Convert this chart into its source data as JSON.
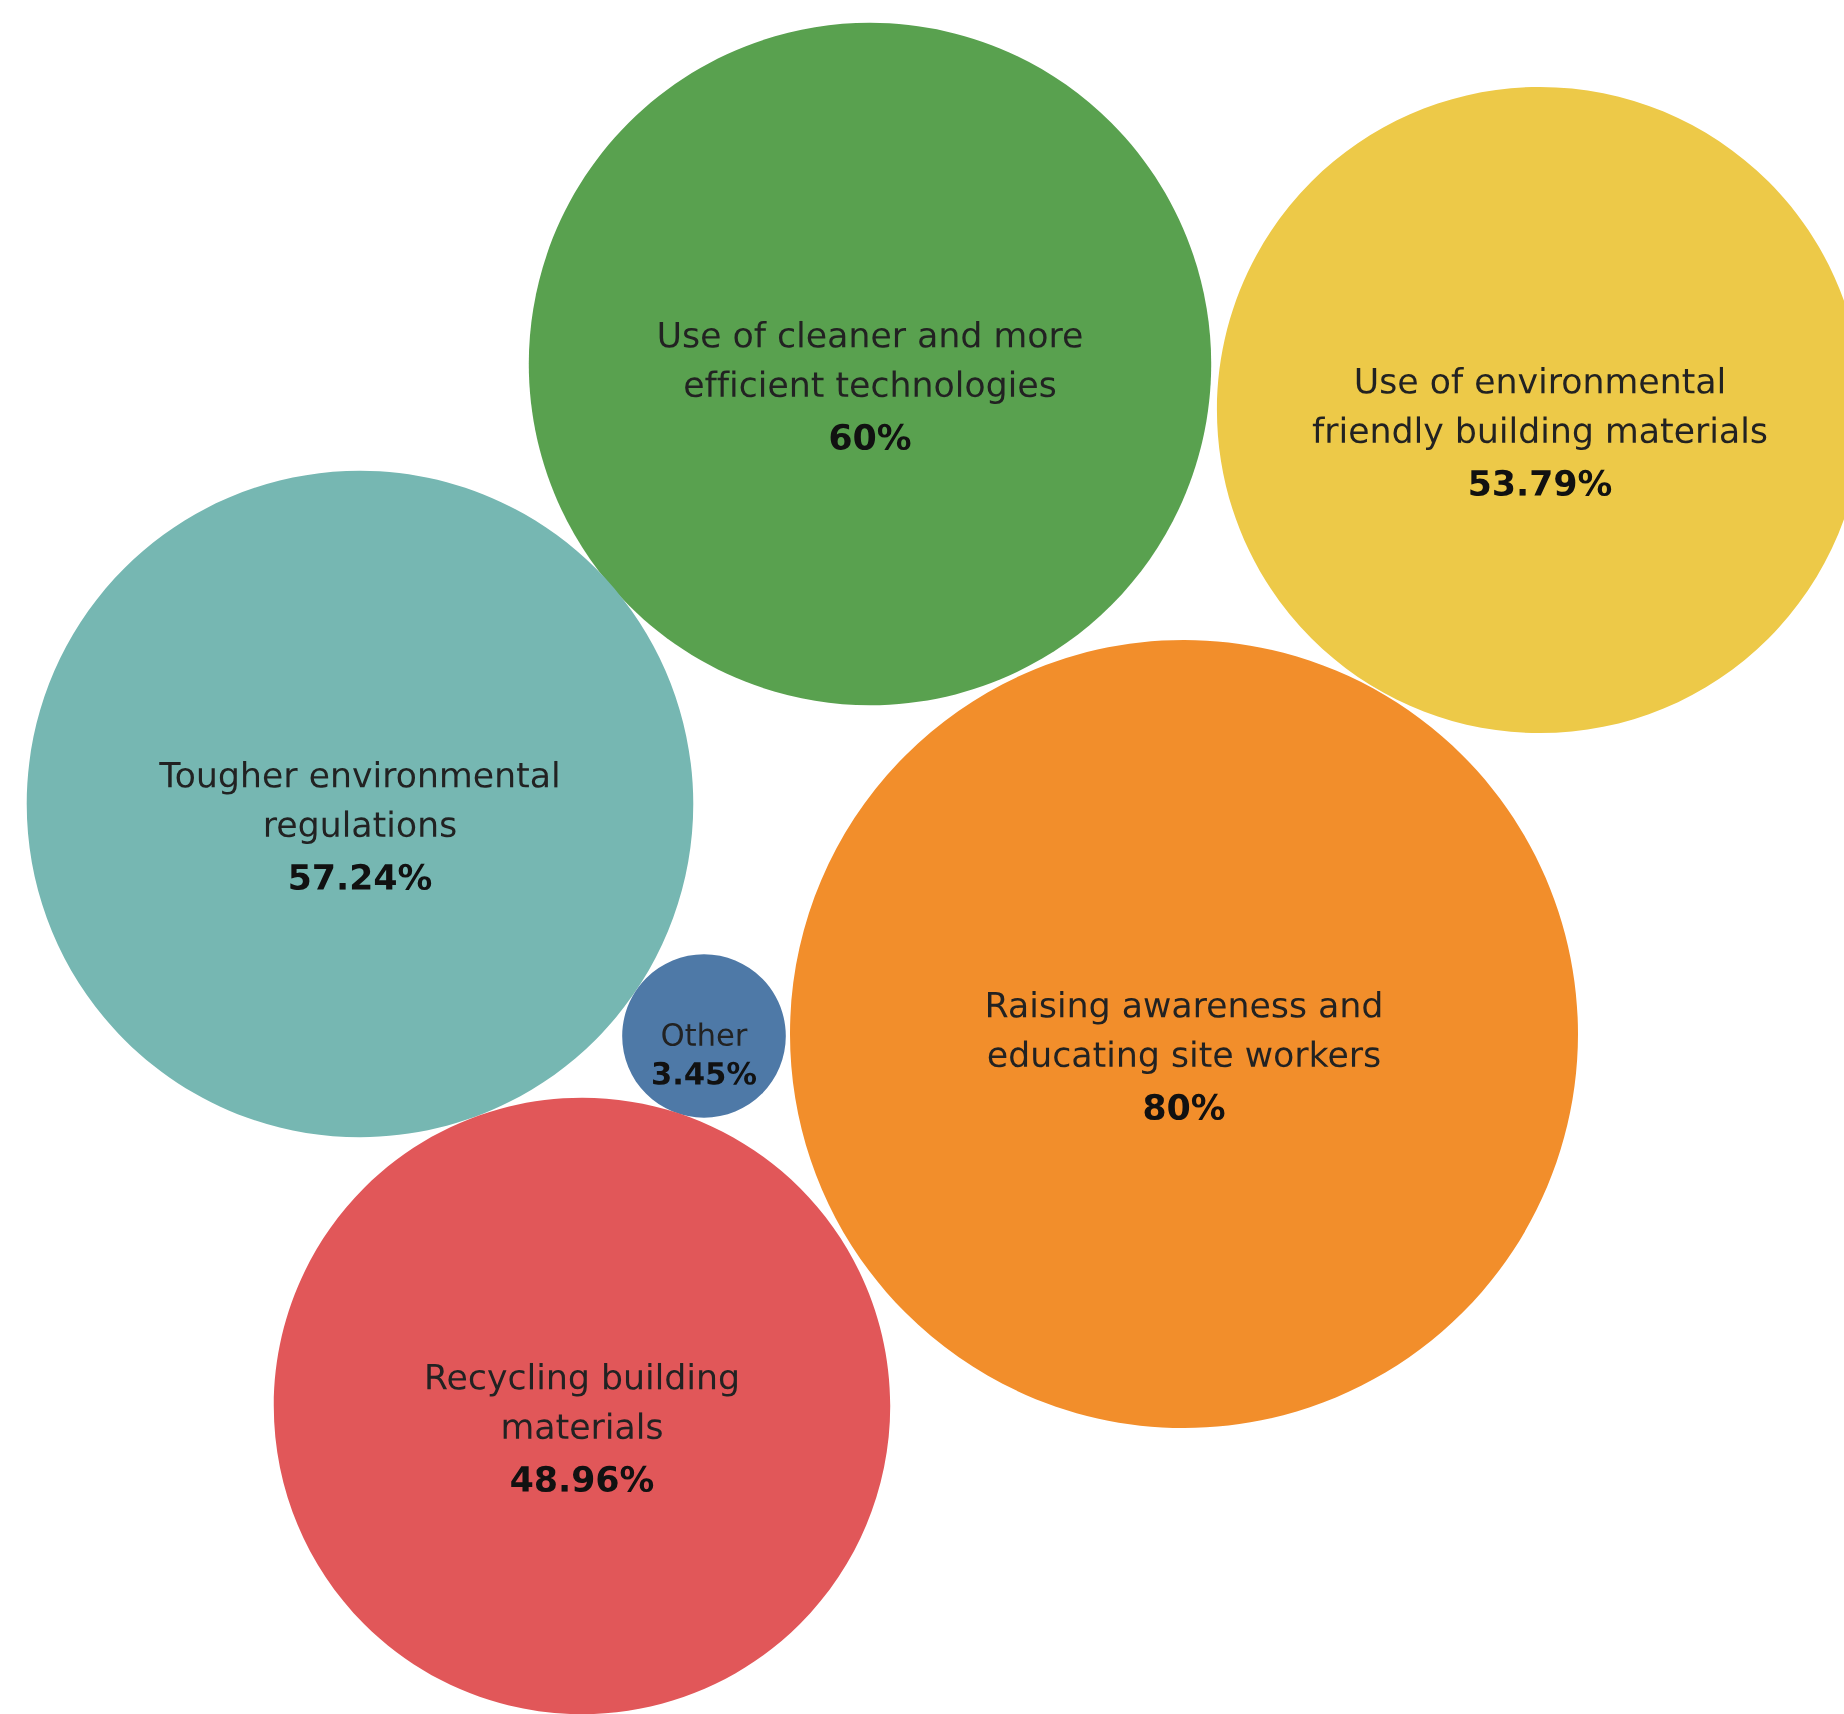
{
  "chart_data": {
    "type": "other",
    "categories": [
      "Use of cleaner and more efficient technologies",
      "Use of environmental friendly building materials",
      "Tougher environmental regulations",
      "Other",
      "Raising awareness and educating site workers",
      "Recycling building materials"
    ],
    "values": [
      60,
      53.79,
      57.24,
      3.45,
      80,
      48.96
    ],
    "colors": [
      "#59a14f",
      "#edc948",
      "#76b7b2",
      "#4e79a7",
      "#f28e2b",
      "#e15759"
    ],
    "value_labels": [
      "60%",
      "53.79%",
      "57.24%",
      "3.45%",
      "80%",
      "48.96%"
    ]
  }
}
